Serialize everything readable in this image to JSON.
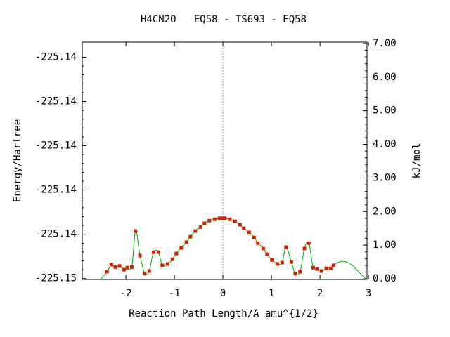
{
  "chart_data": {
    "type": "scatter",
    "title": "H4CN2O   EQ58 - TS693 - EQ58",
    "x_label": "Reaction Path Length/A amu^{1/2}",
    "y_label": "Energy/Hartree",
    "y2_label": "kJ/mol",
    "xlim": [
      -2.9,
      2.97
    ],
    "xticks": [
      -2,
      -1,
      0,
      1,
      2,
      3
    ],
    "ylim": [
      -225.15001,
      -225.14733
    ],
    "yticks": [
      {
        "value": -225.15,
        "label": "-225.15"
      },
      {
        "value": -225.1495,
        "label": "-225.14"
      },
      {
        "value": -225.149,
        "label": "-225.14"
      },
      {
        "value": -225.1485,
        "label": "-225.14"
      },
      {
        "value": -225.148,
        "label": "-225.14"
      },
      {
        "value": -225.1475,
        "label": "-225.14"
      }
    ],
    "y2lim": [
      -0.02,
      7.04
    ],
    "y2ticks": [
      {
        "value": 0,
        "label": "0.00"
      },
      {
        "value": 1,
        "label": "1.00"
      },
      {
        "value": 2,
        "label": "2.00"
      },
      {
        "value": 3,
        "label": "3.00"
      },
      {
        "value": 4,
        "label": "4.00"
      },
      {
        "value": 5,
        "label": "5.00"
      },
      {
        "value": 6,
        "label": "6.00"
      },
      {
        "value": 7,
        "label": "7.00"
      }
    ],
    "series": [
      {
        "color": "#00b000",
        "axis": "y2",
        "style": "line",
        "x": [
          -2.52,
          -2.39,
          -2.3,
          -2.22,
          -2.13,
          -2.04,
          -1.97,
          -1.88,
          -1.8,
          -1.71,
          -1.61,
          -1.52,
          -1.43,
          -1.33,
          -1.25,
          -1.14,
          -1.04,
          -0.96,
          -0.86,
          -0.75,
          -0.67,
          -0.57,
          -0.46,
          -0.38,
          -0.28,
          -0.17,
          -0.07,
          0,
          0.04,
          0.14,
          0.25,
          0.35,
          0.43,
          0.54,
          0.64,
          0.72,
          0.83,
          0.91,
          1.01,
          1.12,
          1.22,
          1.3,
          1.41,
          1.49,
          1.59,
          1.68,
          1.77,
          1.86,
          1.94,
          2.03,
          2.13,
          2.22,
          2.28,
          2.45,
          2.65,
          2.85,
          2.97
        ],
        "values": [
          -0.02,
          0.21,
          0.42,
          0.35,
          0.38,
          0.27,
          0.33,
          0.35,
          1.42,
          0.69,
          0.15,
          0.23,
          0.79,
          0.79,
          0.4,
          0.44,
          0.58,
          0.75,
          0.92,
          1.09,
          1.25,
          1.42,
          1.54,
          1.65,
          1.73,
          1.77,
          1.8,
          1.8,
          1.8,
          1.77,
          1.71,
          1.61,
          1.5,
          1.38,
          1.23,
          1.06,
          0.9,
          0.73,
          0.56,
          0.44,
          0.48,
          0.94,
          0.5,
          0.15,
          0.21,
          0.9,
          1.06,
          0.33,
          0.29,
          0.23,
          0.31,
          0.31,
          0.4,
          0.52,
          0.42,
          0.13,
          -0.02
        ]
      },
      {
        "color": "#cc2200",
        "axis": "y2",
        "style": "points",
        "x": [
          -2.39,
          -2.3,
          -2.22,
          -2.13,
          -2.04,
          -1.97,
          -1.88,
          -1.8,
          -1.71,
          -1.61,
          -1.52,
          -1.43,
          -1.33,
          -1.25,
          -1.14,
          -1.04,
          -0.96,
          -0.86,
          -0.75,
          -0.67,
          -0.57,
          -0.46,
          -0.38,
          -0.28,
          -0.17,
          -0.07,
          0,
          0.04,
          0.14,
          0.25,
          0.35,
          0.43,
          0.54,
          0.64,
          0.72,
          0.83,
          0.91,
          1.01,
          1.12,
          1.22,
          1.3,
          1.41,
          1.49,
          1.59,
          1.68,
          1.77,
          1.86,
          1.94,
          2.03,
          2.13,
          2.22,
          2.28
        ],
        "values": [
          0.21,
          0.42,
          0.35,
          0.38,
          0.27,
          0.33,
          0.35,
          1.42,
          0.69,
          0.15,
          0.23,
          0.79,
          0.79,
          0.4,
          0.44,
          0.58,
          0.75,
          0.92,
          1.09,
          1.25,
          1.42,
          1.54,
          1.65,
          1.73,
          1.77,
          1.8,
          1.8,
          1.8,
          1.77,
          1.71,
          1.61,
          1.5,
          1.38,
          1.23,
          1.06,
          0.9,
          0.73,
          0.56,
          0.44,
          0.48,
          0.94,
          0.5,
          0.15,
          0.21,
          0.9,
          1.06,
          0.33,
          0.29,
          0.23,
          0.31,
          0.31,
          0.4
        ]
      }
    ]
  }
}
